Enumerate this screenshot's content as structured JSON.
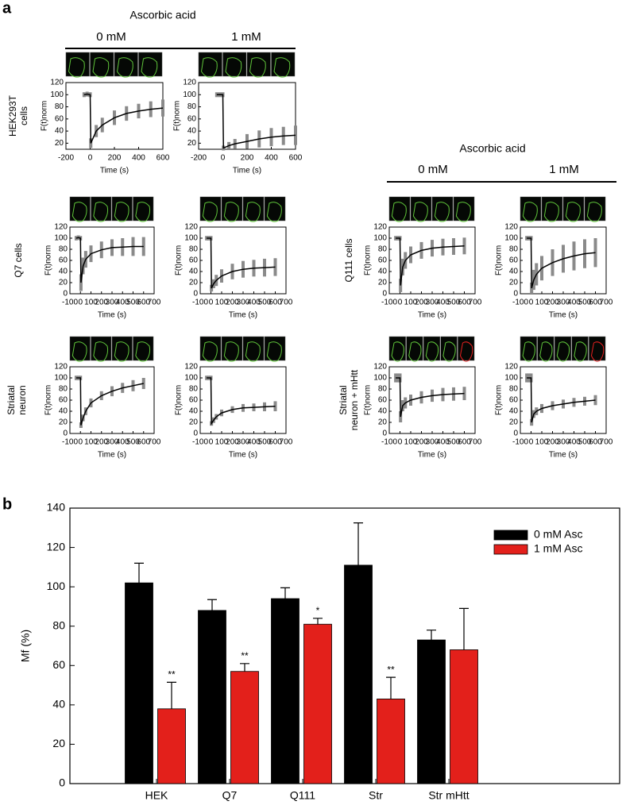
{
  "panel_labels": [
    "a",
    "b"
  ],
  "headers": [
    {
      "title": "Ascorbic acid",
      "conditions": [
        "0 mM",
        "1 mM"
      ]
    },
    {
      "title": "Ascorbic acid",
      "conditions": [
        "0 mM",
        "1 mM"
      ]
    }
  ],
  "row_labels": [
    [
      "HEK293T",
      "cells"
    ],
    [
      "Q7 cells"
    ],
    [
      "Striatal",
      "neuron"
    ],
    [
      "Q111 cells"
    ],
    [
      "Striatal",
      "neuron  + mHtt"
    ]
  ],
  "chart_data": [
    {
      "type": "line",
      "xlabel": "Time (s)",
      "ylabel": "F(t)norm",
      "color": "#000000",
      "error_color": "#8a8a8a",
      "x": [
        -50,
        -25,
        0,
        5,
        50,
        100,
        200,
        300,
        400,
        500,
        600
      ],
      "values": [
        100,
        101,
        100,
        20,
        40,
        50,
        62,
        69,
        73,
        76,
        78
      ],
      "errors": [
        4,
        4,
        4,
        8,
        10,
        12,
        12,
        12,
        12,
        13,
        14
      ],
      "xlim": [
        -200,
        600
      ],
      "xticks": [
        -200,
        0,
        200,
        400,
        600
      ],
      "ylim": [
        10,
        120
      ],
      "yticks": [
        20,
        40,
        60,
        80,
        100,
        120
      ]
    },
    {
      "type": "line",
      "xlabel": "Time (s)",
      "ylabel": "F(t)norm",
      "color": "#000000",
      "error_color": "#8a8a8a",
      "x": [
        -50,
        -25,
        0,
        5,
        50,
        100,
        200,
        300,
        400,
        500,
        600
      ],
      "values": [
        100,
        100,
        100,
        12,
        16,
        19,
        23,
        27,
        30,
        32,
        33
      ],
      "errors": [
        4,
        4,
        4,
        4,
        6,
        8,
        12,
        14,
        15,
        15,
        16
      ],
      "xlim": [
        -200,
        600
      ],
      "xticks": [
        -200,
        0,
        200,
        400,
        600
      ],
      "ylim": [
        10,
        120
      ],
      "yticks": [
        20,
        40,
        60,
        80,
        100,
        120
      ]
    },
    {
      "type": "line",
      "xlabel": "Time (s)",
      "ylabel": "F(t)norm",
      "color": "#000000",
      "error_color": "#8a8a8a",
      "x": [
        -40,
        -20,
        0,
        5,
        25,
        50,
        100,
        200,
        300,
        400,
        500,
        600
      ],
      "values": [
        100,
        101,
        100,
        20,
        50,
        62,
        72,
        79,
        83,
        84,
        85,
        85
      ],
      "errors": [
        4,
        4,
        4,
        15,
        15,
        15,
        15,
        15,
        15,
        16,
        17,
        17
      ],
      "xlim": [
        -100,
        700
      ],
      "xticks": [
        -100,
        0,
        100,
        200,
        300,
        400,
        500,
        600,
        700
      ],
      "ylim": [
        0,
        120
      ],
      "yticks": [
        0,
        20,
        40,
        60,
        80,
        100,
        120
      ]
    },
    {
      "type": "line",
      "xlabel": "Time (s)",
      "ylabel": "F(t)norm",
      "color": "#000000",
      "error_color": "#8a8a8a",
      "x": [
        -40,
        -20,
        0,
        5,
        25,
        50,
        100,
        200,
        300,
        400,
        500,
        600
      ],
      "values": [
        100,
        100,
        100,
        10,
        18,
        24,
        32,
        40,
        44,
        46,
        47,
        48
      ],
      "errors": [
        4,
        4,
        4,
        6,
        8,
        10,
        12,
        14,
        15,
        15,
        16,
        16
      ],
      "xlim": [
        -100,
        700
      ],
      "xticks": [
        -100,
        0,
        100,
        200,
        300,
        400,
        500,
        600,
        700
      ],
      "ylim": [
        0,
        120
      ],
      "yticks": [
        0,
        20,
        40,
        60,
        80,
        100,
        120
      ]
    },
    {
      "type": "line",
      "xlabel": "Time (s)",
      "ylabel": "F(t)norm",
      "color": "#000000",
      "error_color": "#8a8a8a",
      "x": [
        -40,
        -20,
        0,
        5,
        25,
        50,
        100,
        200,
        300,
        400,
        500,
        600
      ],
      "values": [
        100,
        100,
        100,
        15,
        28,
        40,
        55,
        68,
        76,
        82,
        86,
        90
      ],
      "errors": [
        4,
        4,
        4,
        5,
        6,
        7,
        8,
        8,
        9,
        9,
        10,
        10
      ],
      "xlim": [
        -100,
        700
      ],
      "xticks": [
        -100,
        0,
        100,
        200,
        300,
        400,
        500,
        600,
        700
      ],
      "ylim": [
        0,
        120
      ],
      "yticks": [
        0,
        20,
        40,
        60,
        80,
        100,
        120
      ]
    },
    {
      "type": "line",
      "xlabel": "Time (s)",
      "ylabel": "F(t)norm",
      "color": "#000000",
      "error_color": "#8a8a8a",
      "x": [
        -40,
        -20,
        0,
        5,
        25,
        50,
        100,
        200,
        300,
        400,
        500,
        600
      ],
      "values": [
        100,
        100,
        100,
        18,
        24,
        30,
        37,
        43,
        46,
        47,
        48,
        49
      ],
      "errors": [
        4,
        4,
        4,
        4,
        5,
        5,
        6,
        6,
        7,
        7,
        8,
        9
      ],
      "xlim": [
        -100,
        700
      ],
      "xticks": [
        -100,
        0,
        100,
        200,
        300,
        400,
        500,
        600,
        700
      ],
      "ylim": [
        0,
        120
      ],
      "yticks": [
        0,
        20,
        40,
        60,
        80,
        100,
        120
      ]
    },
    {
      "type": "line",
      "xlabel": "Time (s)",
      "ylabel": "F(t)norm",
      "color": "#000000",
      "error_color": "#8a8a8a",
      "x": [
        -40,
        -20,
        0,
        5,
        25,
        50,
        100,
        200,
        300,
        400,
        500,
        600
      ],
      "values": [
        100,
        100,
        100,
        15,
        48,
        60,
        70,
        78,
        82,
        84,
        85,
        86
      ],
      "errors": [
        4,
        4,
        4,
        12,
        15,
        15,
        15,
        15,
        15,
        15,
        15,
        15
      ],
      "xlim": [
        -100,
        700
      ],
      "xticks": [
        -100,
        0,
        100,
        200,
        300,
        400,
        500,
        600,
        700
      ],
      "ylim": [
        0,
        120
      ],
      "yticks": [
        0,
        20,
        40,
        60,
        80,
        100,
        120
      ]
    },
    {
      "type": "line",
      "xlabel": "Time (s)",
      "ylabel": "F(t)norm",
      "color": "#000000",
      "error_color": "#8a8a8a",
      "x": [
        -40,
        -20,
        0,
        5,
        25,
        50,
        100,
        200,
        300,
        400,
        500,
        600
      ],
      "values": [
        100,
        100,
        100,
        10,
        25,
        35,
        46,
        56,
        63,
        68,
        72,
        74
      ],
      "errors": [
        4,
        4,
        4,
        10,
        18,
        20,
        22,
        24,
        25,
        26,
        26,
        26
      ],
      "xlim": [
        -100,
        700
      ],
      "xticks": [
        -100,
        0,
        100,
        200,
        300,
        400,
        500,
        600,
        700
      ],
      "ylim": [
        0,
        120
      ],
      "yticks": [
        0,
        20,
        40,
        60,
        80,
        100,
        120
      ]
    },
    {
      "type": "line",
      "xlabel": "Time (s)",
      "ylabel": "F(t)norm",
      "color": "#000000",
      "error_color": "#8a8a8a",
      "x": [
        -40,
        -20,
        0,
        5,
        25,
        50,
        100,
        200,
        300,
        400,
        500,
        600
      ],
      "values": [
        100,
        100,
        100,
        30,
        50,
        55,
        60,
        65,
        68,
        70,
        71,
        72
      ],
      "errors": [
        8,
        8,
        8,
        10,
        10,
        10,
        10,
        11,
        11,
        12,
        12,
        12
      ],
      "xlim": [
        -100,
        700
      ],
      "xticks": [
        -100,
        0,
        100,
        200,
        300,
        400,
        500,
        600,
        700
      ],
      "ylim": [
        0,
        120
      ],
      "yticks": [
        0,
        20,
        40,
        60,
        80,
        100,
        120
      ]
    },
    {
      "type": "line",
      "xlabel": "Time (s)",
      "ylabel": "F(t)norm",
      "color": "#000000",
      "error_color": "#8a8a8a",
      "x": [
        -40,
        -20,
        0,
        5,
        25,
        50,
        100,
        200,
        300,
        400,
        500,
        600
      ],
      "values": [
        100,
        100,
        100,
        20,
        35,
        40,
        45,
        50,
        53,
        56,
        58,
        60
      ],
      "errors": [
        8,
        8,
        8,
        6,
        7,
        7,
        8,
        8,
        8,
        8,
        8,
        9
      ],
      "xlim": [
        -100,
        700
      ],
      "xticks": [
        -100,
        0,
        100,
        200,
        300,
        400,
        500,
        600,
        700
      ],
      "ylim": [
        0,
        120
      ],
      "yticks": [
        0,
        20,
        40,
        60,
        80,
        100,
        120
      ]
    },
    {
      "type": "bar",
      "ylabel": "Mf (%)",
      "categories": [
        "HEK",
        "Q7",
        "Q111",
        "Str",
        "Str mHtt"
      ],
      "series": [
        {
          "name": "0 mM Asc",
          "color": "#000000",
          "values": [
            102,
            88,
            94,
            111,
            73
          ],
          "errors": [
            10,
            5.5,
            5.5,
            21.5,
            5
          ]
        },
        {
          "name": "1 mM Asc",
          "color": "#e3201b",
          "values": [
            38,
            57,
            81,
            43,
            68
          ],
          "errors": [
            13.5,
            4,
            3,
            11,
            21
          ],
          "annotations": [
            "**",
            "**",
            "*",
            "**",
            null
          ]
        }
      ],
      "ylim": [
        0,
        140
      ],
      "yticks": [
        0,
        20,
        40,
        60,
        80,
        100,
        120,
        140
      ],
      "legend": "upper right"
    }
  ]
}
